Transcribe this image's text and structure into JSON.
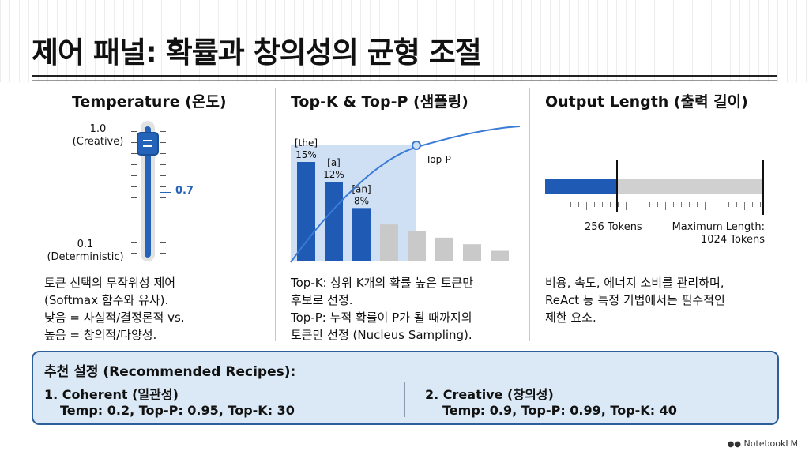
{
  "title": "제어 패널: 확률과 창의성의 균형 조절",
  "temperature": {
    "heading": "Temperature (온도)",
    "top_value": "1.0",
    "top_label": "(Creative)",
    "bottom_value": "0.1",
    "bottom_label": "(Deterministic)",
    "current_value": "0.7",
    "level": 0.7,
    "desc": [
      "토큰 선택의 무작위성 제어",
      "(Softmax 함수와 유사).",
      "낮음 = 사실적/결정론적 vs.",
      "높음 = 창의적/다양성."
    ]
  },
  "sampling": {
    "heading": "Top-K & Top-P (샘플링)",
    "curve_label": "Top-P",
    "desc": [
      "Top-K: 상위 K개의 확률 높은 토큰만",
      "후보로 선정.",
      "Top-P: 누적 확률이 P가 될 때까지의",
      "토큰만 선정 (Nucleus Sampling)."
    ]
  },
  "chart_data": {
    "type": "bar",
    "categories": [
      "[the]",
      "[a]",
      "[an]",
      "",
      "",
      "",
      "",
      ""
    ],
    "values": [
      15,
      12,
      8,
      5.5,
      4.5,
      3.5,
      2.5,
      1.5
    ],
    "value_labels": [
      "15%",
      "12%",
      "8%",
      "",
      "",
      "",
      "",
      ""
    ],
    "series_colors": [
      "#1f5bb5",
      "#1f5bb5",
      "#1f5bb5",
      "#c9c9c9",
      "#c9c9c9",
      "#c9c9c9",
      "#c9c9c9",
      "#c9c9c9"
    ],
    "highlight_count": 3,
    "cumulative_line": true,
    "grid": false,
    "ylim": [
      0,
      18
    ]
  },
  "output_length": {
    "heading": "Output Length (출력 길이)",
    "current_label": "256 Tokens",
    "max_label_1": "Maximum Length:",
    "max_label_2": "1024 Tokens",
    "current_tokens": 256,
    "max_tokens": 1024,
    "desc": [
      "비용, 속도, 에너지 소비를 관리하며,",
      "ReAct 등 특정 기법에서는 필수적인",
      "제한 요소."
    ]
  },
  "recipes": {
    "heading": "추천 설정 (Recommended Recipes):",
    "coherent_title": "1. Coherent (일관성)",
    "coherent_params": "Temp: 0.2, Top-P: 0.95, Top-K: 30",
    "creative_title": "2. Creative (창의성)",
    "creative_params": "Temp: 0.9, Top-P: 0.99, Top-K: 40"
  },
  "logo": "NotebookLM",
  "colors": {
    "accent": "#2463b8",
    "highlight": "#cfe0f5",
    "inactive": "#c9c9c9",
    "recipe_bg": "#dbe9f6"
  }
}
